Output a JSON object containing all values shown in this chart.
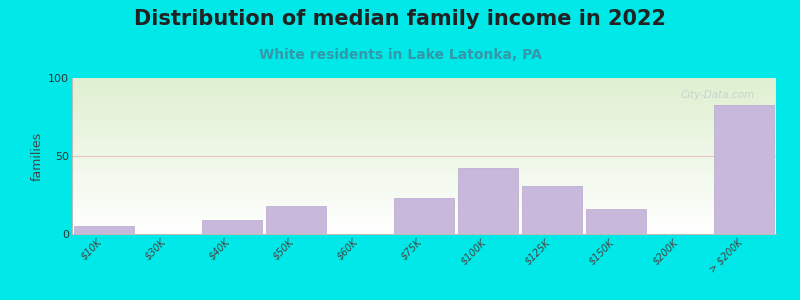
{
  "title": "Distribution of median family income in 2022",
  "subtitle": "White residents in Lake Latonka, PA",
  "ylabel": "families",
  "background_color": "#00e8e8",
  "plot_bg_top": "#dff0d0",
  "plot_bg_bottom": "#ffffff",
  "bar_color": "#c8b8dc",
  "bar_edge_color": "#b8a8cc",
  "all_labels": [
    "$10K",
    "$30K",
    "$40K",
    "$50K",
    "$60K",
    "$75K",
    "$100K",
    "$125K",
    "$150K",
    "$200K",
    "> $200K"
  ],
  "all_values": [
    5,
    0,
    9,
    18,
    0,
    23,
    42,
    31,
    16,
    0,
    83
  ],
  "ylim": [
    0,
    100
  ],
  "yticks": [
    0,
    50,
    100
  ],
  "gridline_color": "#e8a0a0",
  "gridline_alpha": 0.6,
  "title_fontsize": 15,
  "subtitle_fontsize": 10,
  "subtitle_color": "#3399aa",
  "watermark": "City-Data.com"
}
